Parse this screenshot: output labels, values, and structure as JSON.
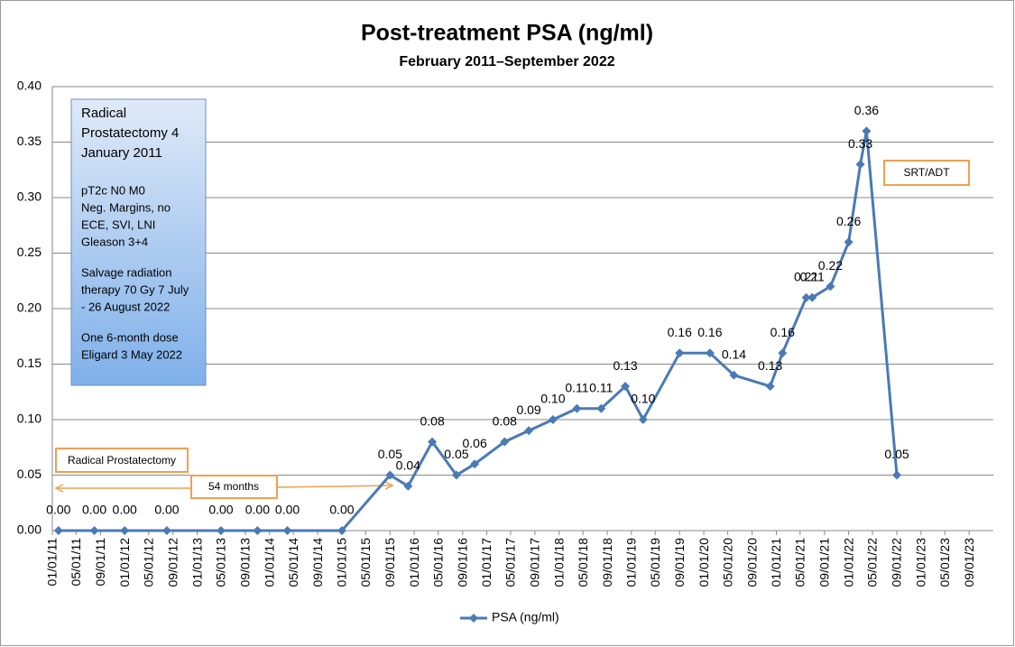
{
  "chart_data": {
    "type": "line",
    "title": "Post-treatment PSA (ng/ml)",
    "subtitle": "February 2011–September 2022",
    "x": [
      "02/01/11",
      "08/01/11",
      "01/01/12",
      "08/01/12",
      "05/01/13",
      "11/01/13",
      "04/01/14",
      "01/01/15",
      "09/01/15",
      "12/01/15",
      "04/01/16",
      "08/01/16",
      "11/01/16",
      "04/01/17",
      "08/01/17",
      "12/01/17",
      "04/01/18",
      "08/01/18",
      "12/01/18",
      "03/01/19",
      "09/01/19",
      "02/01/20",
      "06/01/20",
      "12/01/20",
      "02/01/21",
      "06/01/21",
      "07/01/21",
      "10/01/21",
      "01/01/22",
      "03/01/22",
      "04/01/22",
      "09/01/22"
    ],
    "series": [
      {
        "name": "PSA (ng/ml)",
        "color": "#4a7ab5",
        "values": [
          0,
          0,
          0,
          0,
          0,
          0,
          0,
          0,
          0.05,
          0.04,
          0.08,
          0.05,
          0.06,
          0.08,
          0.09,
          0.1,
          0.11,
          0.11,
          0.13,
          0.1,
          0.16,
          0.16,
          0.14,
          0.13,
          0.16,
          0.21,
          0.21,
          0.22,
          0.26,
          0.33,
          0.36,
          0.05
        ],
        "value_labels": [
          "0.00",
          "0.00",
          "0.00",
          "0.00",
          "0.00",
          "0.00",
          "0.00",
          "0.00",
          "0.05",
          "0.04",
          "0.08",
          "0.05",
          "0.06",
          "0.08",
          "0.09",
          "0.10",
          "0.11",
          "0.11",
          "0.13",
          "0.10",
          "0.16",
          "0.16",
          "0.14",
          "0.13",
          "0.16",
          "0.21",
          "0.21",
          "0.22",
          "0.26",
          "0.33",
          "0.36",
          "0.05"
        ]
      }
    ],
    "xlim": [
      "01/01/11",
      "01/01/24"
    ],
    "xticks": [
      "01/01/11",
      "05/01/11",
      "09/01/11",
      "01/01/12",
      "05/01/12",
      "09/01/12",
      "01/01/13",
      "05/01/13",
      "09/01/13",
      "01/01/14",
      "05/01/14",
      "09/01/14",
      "01/01/15",
      "05/01/15",
      "09/01/15",
      "01/01/16",
      "05/01/16",
      "09/01/16",
      "01/01/17",
      "05/01/17",
      "09/01/17",
      "01/01/18",
      "05/01/18",
      "09/01/18",
      "01/01/19",
      "05/01/19",
      "09/01/19",
      "01/01/20",
      "05/01/20",
      "09/01/20",
      "01/01/21",
      "05/01/21",
      "09/01/21",
      "01/01/22",
      "05/01/22",
      "09/01/22",
      "01/01/23",
      "05/01/23",
      "09/01/23"
    ],
    "ylim": [
      0,
      0.4
    ],
    "yticks": [
      {
        "value": 0,
        "label": "0.00"
      },
      {
        "value": 0.05,
        "label": "0.05"
      },
      {
        "value": 0.1,
        "label": "0.10"
      },
      {
        "value": 0.15,
        "label": "0.15"
      },
      {
        "value": 0.2,
        "label": "0.20"
      },
      {
        "value": 0.25,
        "label": "0.25"
      },
      {
        "value": 0.3,
        "label": "0.30"
      },
      {
        "value": 0.35,
        "label": "0.35"
      },
      {
        "value": 0.4,
        "label": "0.40"
      }
    ],
    "grid": true,
    "legend": "bottom",
    "note_box": [
      [
        "Radical",
        "Prostatectomy 4",
        "January 2011"
      ],
      [
        "pT2c N0 M0",
        "Neg. Margins, no",
        "ECE, SVI, LNI",
        "Gleason 3+4"
      ],
      [
        "Salvage radiation",
        "therapy 70 Gy 7 July",
        "- 26 August 2022"
      ],
      [
        "One 6-month dose",
        "Eligard 3 May 2022"
      ]
    ],
    "annotations": [
      "Radical Prostatectomy",
      "54 months",
      "SRT/ADT"
    ]
  }
}
